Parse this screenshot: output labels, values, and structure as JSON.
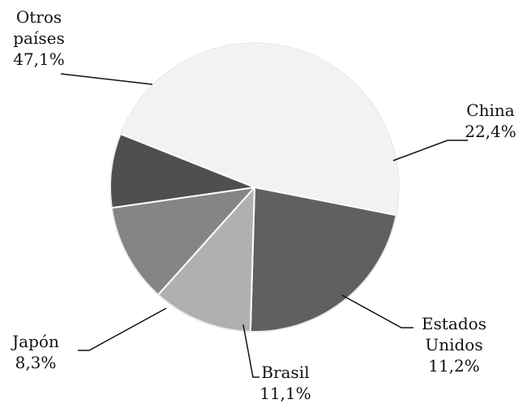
{
  "chart_data": {
    "type": "pie",
    "title": "",
    "slices": [
      {
        "label_lines": [
          "Otros",
          "países"
        ],
        "value": 47.1,
        "value_label": "47,1%",
        "color": "#f2f2f2"
      },
      {
        "label_lines": [
          "China"
        ],
        "value": 22.4,
        "value_label": "22,4%",
        "color": "#606060"
      },
      {
        "label_lines": [
          "Estados",
          "Unidos"
        ],
        "value": 11.2,
        "value_label": "11,2%",
        "color": "#b0b0b0"
      },
      {
        "label_lines": [
          "Brasil"
        ],
        "value": 11.1,
        "value_label": "11,1%",
        "color": "#858585"
      },
      {
        "label_lines": [
          "Japón"
        ],
        "value": 8.3,
        "value_label": "8,3%",
        "color": "#4f4f4f"
      }
    ],
    "legend": "none",
    "data_labels": "outside with leader lines"
  }
}
